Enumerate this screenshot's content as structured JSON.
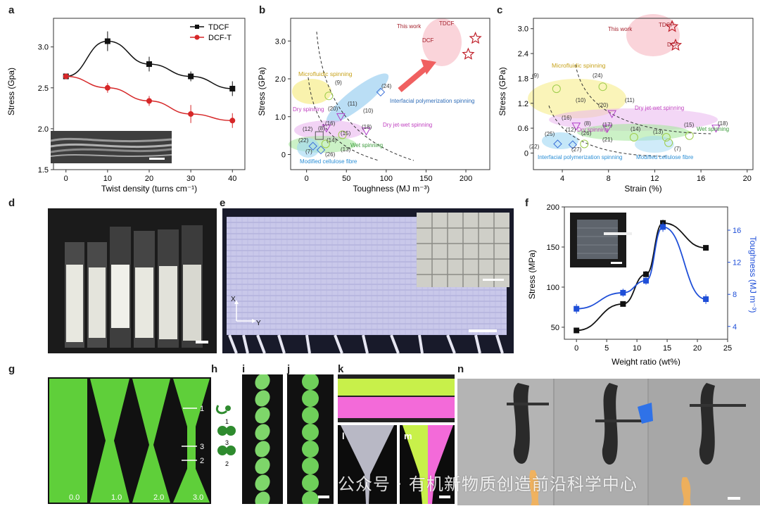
{
  "panels": {
    "a": "a",
    "b": "b",
    "c": "c",
    "d": "d",
    "e": "e",
    "f": "f",
    "g": "g",
    "h": "h",
    "i": "i",
    "j": "j",
    "k": "k",
    "l": "l",
    "m": "m",
    "n": "n"
  },
  "chart_data": [
    {
      "id": "a",
      "type": "line",
      "xlabel": "Twist density (turns cm⁻¹)",
      "ylabel": "Stress (Gpa)",
      "xlim": [
        -3,
        43
      ],
      "ylim": [
        1.5,
        3.35
      ],
      "xticks": [
        "0",
        "10",
        "20",
        "30",
        "40"
      ],
      "yticks": [
        "1.5",
        "2.0",
        "2.5",
        "3.0"
      ],
      "x": [
        0,
        10,
        20,
        30,
        40
      ],
      "series": [
        {
          "name": "TDCF",
          "color": "#111111",
          "marker": "square",
          "values": [
            2.64,
            3.07,
            2.79,
            2.64,
            2.49
          ],
          "errors": [
            0.02,
            0.12,
            0.09,
            0.06,
            0.09
          ]
        },
        {
          "name": "DCF-T",
          "color": "#d62728",
          "marker": "circle",
          "values": [
            2.64,
            2.5,
            2.34,
            2.18,
            2.1
          ],
          "errors": [
            0.02,
            0.06,
            0.06,
            0.11,
            0.09
          ]
        }
      ],
      "legend": "top-right"
    },
    {
      "id": "b",
      "type": "scatter",
      "xlabel": "Toughness (MJ m⁻³)",
      "ylabel": "Stress (GPa)",
      "xlim": [
        -20,
        230
      ],
      "ylim": [
        -0.4,
        3.6
      ],
      "xticks": [
        "0",
        "50",
        "100",
        "150",
        "200"
      ],
      "yticks": [
        "0",
        "1.0",
        "2.0",
        "3.0"
      ],
      "annotations": [
        "This work",
        "TDCF",
        "DCF",
        "Microfluidic spinning",
        "Interfacial polymerization spinning",
        "Dry spinning",
        "Dry jet-wet spinning",
        "Wet spinning",
        "Modified cellulose fibre",
        "(9)",
        "(11)",
        "(20)",
        "(10)",
        "(16)",
        "(18)",
        "(12)",
        "(8)",
        "(15)",
        "(22)",
        "(14)",
        "(7)",
        "(26)",
        "(13)",
        "(24)"
      ],
      "points": [
        {
          "label": "TDCF",
          "x": 212,
          "y": 3.07,
          "marker": "star"
        },
        {
          "label": "DCF",
          "x": 203,
          "y": 2.65,
          "marker": "star"
        },
        {
          "label": "(24)",
          "x": 93,
          "y": 1.65,
          "marker": "diamond"
        },
        {
          "label": "(9)",
          "x": 28,
          "y": 1.55,
          "marker": "circle"
        },
        {
          "label": "(11)",
          "x": 43,
          "y": 1.0,
          "marker": "triangle"
        },
        {
          "label": "(16)",
          "x": 25,
          "y": 0.7,
          "marker": "triangle"
        },
        {
          "label": "(18)",
          "x": 75,
          "y": 0.62,
          "marker": "triangle"
        },
        {
          "label": "(15)",
          "x": 45,
          "y": 0.52,
          "marker": "circle"
        },
        {
          "label": "(12)",
          "x": 16,
          "y": 0.5,
          "marker": "square"
        },
        {
          "label": "(22)",
          "x": 8,
          "y": 0.22,
          "marker": "diamond"
        },
        {
          "label": "(14)",
          "x": 24,
          "y": 0.28,
          "marker": "circle"
        },
        {
          "label": "(26)",
          "x": 18,
          "y": 0.12,
          "marker": "diamond"
        }
      ]
    },
    {
      "id": "c",
      "type": "scatter",
      "xlabel": "Strain (%)",
      "ylabel": "Stress (GPa)",
      "xlim": [
        1.5,
        20.5
      ],
      "ylim": [
        -0.4,
        3.25
      ],
      "xticks": [
        "4",
        "8",
        "12",
        "16",
        "20"
      ],
      "yticks": [
        "0",
        "0.6",
        "1.2",
        "1.8",
        "2.4",
        "3.0"
      ],
      "annotations": [
        "This work",
        "TDCF",
        "DCF",
        "Microfluidic spinning",
        "Dry jet-wet spinning",
        "Dry spinning",
        "Wet spinning",
        "Interfacial polymerization spinning",
        "Modified cellulose fibre",
        "(9)",
        "(24)",
        "(10)",
        "(11)",
        "(20)",
        "(16)",
        "(8)",
        "(17)",
        "(12)",
        "(14)",
        "(13)",
        "(15)",
        "(18)",
        "(25)",
        "(26)",
        "(21)",
        "(27)",
        "(22)",
        "(7)"
      ],
      "points": [
        {
          "label": "TDCF",
          "x": 13.5,
          "y": 3.05,
          "marker": "star"
        },
        {
          "label": "DCF",
          "x": 13.8,
          "y": 2.6,
          "marker": "star"
        },
        {
          "label": "(9)",
          "x": 3.5,
          "y": 1.55,
          "marker": "circle"
        },
        {
          "label": "(24)",
          "x": 7.5,
          "y": 1.6,
          "marker": "circle"
        },
        {
          "label": "(20)",
          "x": 8.3,
          "y": 0.95,
          "marker": "triangle"
        },
        {
          "label": "(16)",
          "x": 5.2,
          "y": 0.65,
          "marker": "triangle"
        },
        {
          "label": "(17)",
          "x": 7.9,
          "y": 0.6,
          "marker": "triangle"
        },
        {
          "label": "(18)",
          "x": 17.3,
          "y": 0.6,
          "marker": "triangle"
        },
        {
          "label": "(14)",
          "x": 10.2,
          "y": 0.38,
          "marker": "circle"
        },
        {
          "label": "(15)",
          "x": 15.0,
          "y": 0.42,
          "marker": "circle"
        },
        {
          "label": "(13)",
          "x": 13.0,
          "y": 0.38,
          "marker": "circle"
        },
        {
          "label": "(25)",
          "x": 3.6,
          "y": 0.22,
          "marker": "diamond"
        },
        {
          "label": "(26)",
          "x": 4.9,
          "y": 0.2,
          "marker": "diamond"
        },
        {
          "label": "(21)",
          "x": 5.9,
          "y": 0.22,
          "marker": "circle"
        },
        {
          "label": "(7)",
          "x": 13.2,
          "y": 0.25,
          "marker": "circle"
        }
      ]
    },
    {
      "id": "f",
      "type": "line",
      "xlabel": "Weight ratio (wt%)",
      "ylabel": "Stress (MPa)",
      "ylabel2": "Toughness (MJ m⁻³)",
      "xlim": [
        -2,
        25
      ],
      "ylim": [
        35,
        200
      ],
      "ylim2": [
        2.4,
        18.9
      ],
      "xticks": [
        "0",
        "5",
        "10",
        "15",
        "20",
        "25"
      ],
      "yticks": [
        "50",
        "100",
        "150",
        "200"
      ],
      "yticks2": [
        "4",
        "8",
        "12",
        "16"
      ],
      "x": [
        0,
        7.7,
        11.5,
        14.3,
        21.4
      ],
      "series": [
        {
          "name": "Stress",
          "color": "#111111",
          "marker": "square",
          "axis": "left",
          "values": [
            46,
            79,
            116,
            180,
            149
          ],
          "errors": [
            3,
            3,
            4,
            4,
            2
          ]
        },
        {
          "name": "Toughness",
          "color": "#1f4fd8",
          "marker": "square",
          "axis": "right",
          "values": [
            6.2,
            8.2,
            9.7,
            16.4,
            7.4
          ],
          "errors": [
            0.6,
            0.5,
            0.5,
            0.6,
            0.6
          ]
        }
      ]
    }
  ],
  "panel_g_labels": [
    "0.0",
    "1.0",
    "2.0",
    "3.0"
  ],
  "panel_g_markers": [
    "1",
    "3",
    "2"
  ],
  "panel_h_labels": [
    "1",
    "3",
    "2"
  ],
  "panel_e_axes": {
    "x": "X",
    "y": "Y"
  },
  "watermark": "公众号 · 有机新物质创造前沿科学中心",
  "colors": {
    "tdcf": "#111111",
    "dcft": "#d62728",
    "blue": "#1f4fd8",
    "green_fibre": "#7ee05a",
    "pink": "#ff5ad0"
  }
}
